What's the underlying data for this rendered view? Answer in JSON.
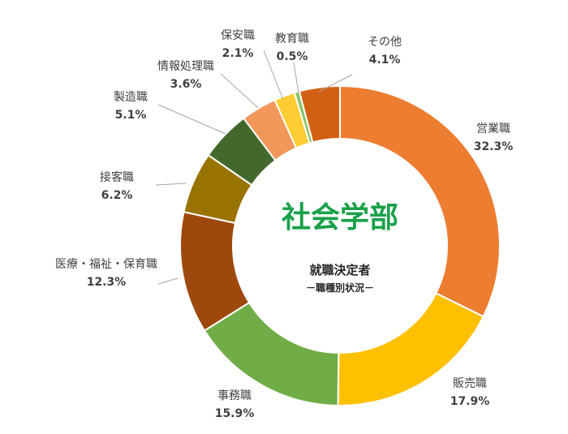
{
  "chart_data": {
    "type": "pie",
    "title": "社会学部",
    "subtitle": "就職決定者",
    "subtitle2": "－職種別状況－",
    "categories": [
      "営業職",
      "販売職",
      "事務職",
      "医療・福祉・保育職",
      "接客職",
      "製造職",
      "情報処理職",
      "保安職",
      "教育職",
      "その他"
    ],
    "values": [
      32.3,
      17.9,
      15.9,
      12.3,
      6.2,
      5.1,
      3.6,
      2.1,
      0.5,
      4.1
    ],
    "labels": [
      "32.3%",
      "17.9%",
      "15.9%",
      "12.3%",
      "6.2%",
      "5.1%",
      "3.6%",
      "2.1%",
      "0.5%",
      "4.1%"
    ],
    "colors": [
      "#ed7d31",
      "#ffc000",
      "#70ad47",
      "#9e480e",
      "#997300",
      "#43682b",
      "#f1975a",
      "#ffcd33",
      "#8cc168",
      "#d26012"
    ],
    "legend": "none"
  }
}
